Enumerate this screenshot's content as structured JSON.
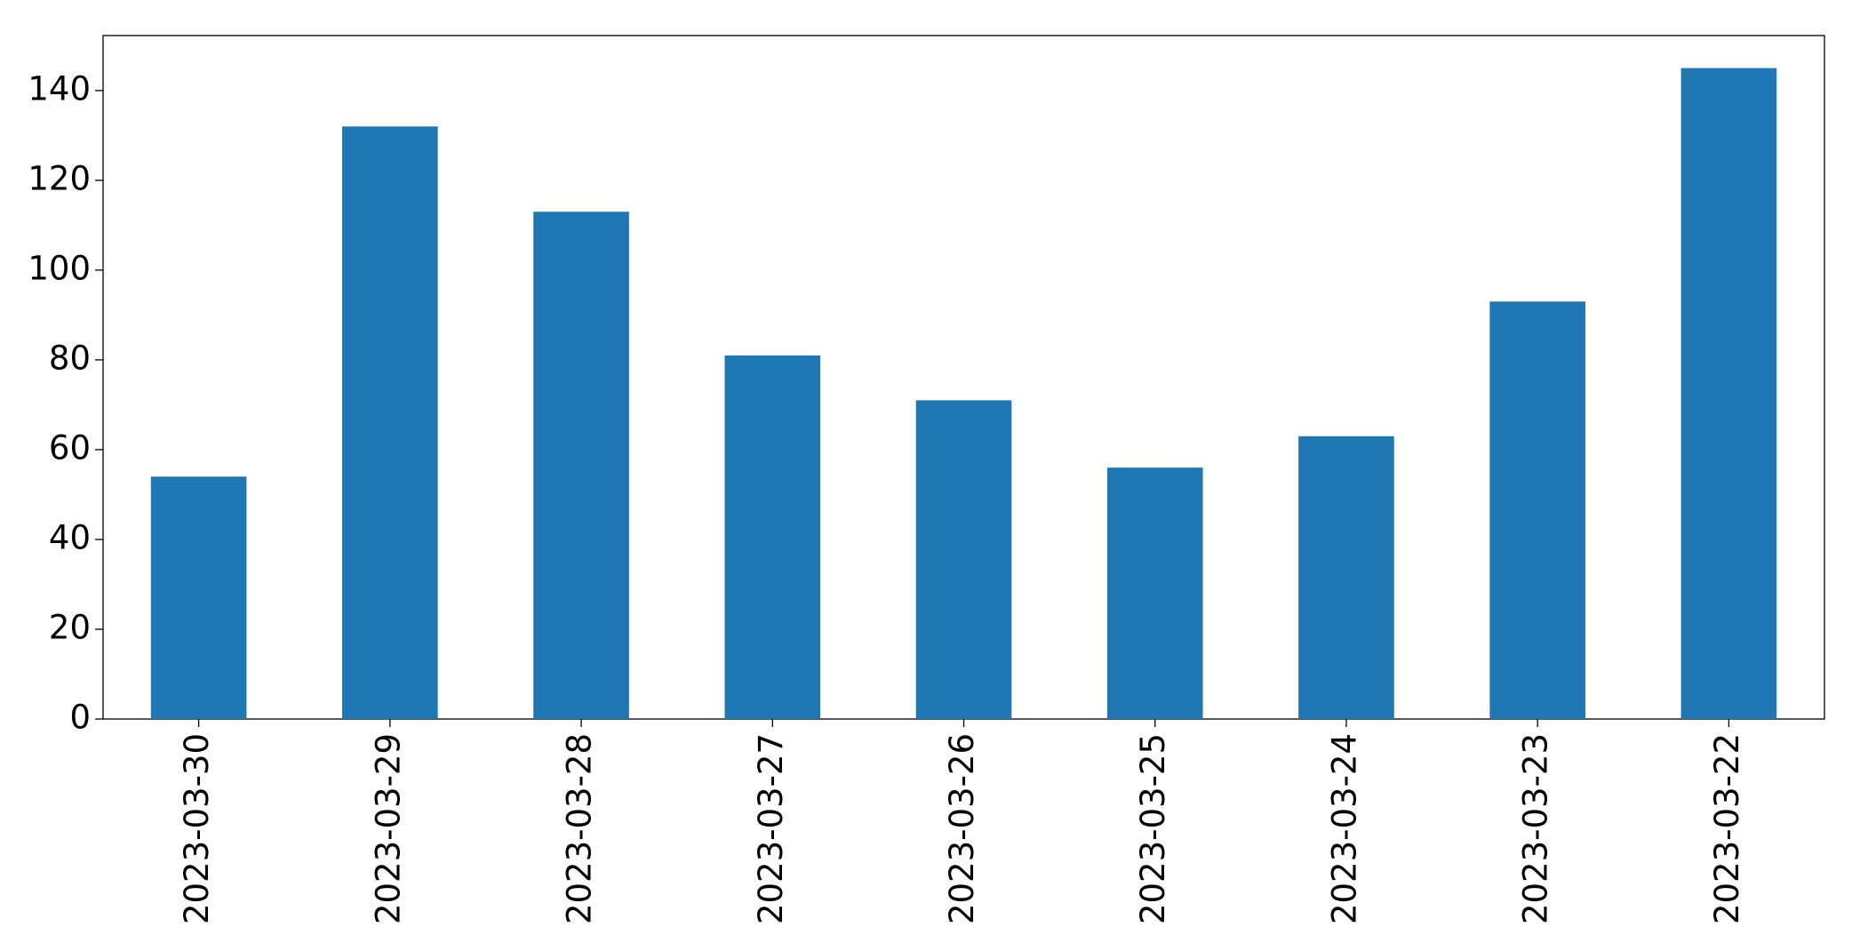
{
  "chart_data": {
    "type": "bar",
    "categories": [
      "2023-03-30",
      "2023-03-29",
      "2023-03-28",
      "2023-03-27",
      "2023-03-26",
      "2023-03-25",
      "2023-03-24",
      "2023-03-23",
      "2023-03-22"
    ],
    "values": [
      54,
      132,
      113,
      81,
      71,
      56,
      63,
      93,
      145
    ],
    "color": "#1f77b4",
    "ylim": [
      0,
      152.25
    ],
    "yticks": [
      0,
      20,
      40,
      60,
      80,
      100,
      120,
      140
    ],
    "grid": false
  }
}
